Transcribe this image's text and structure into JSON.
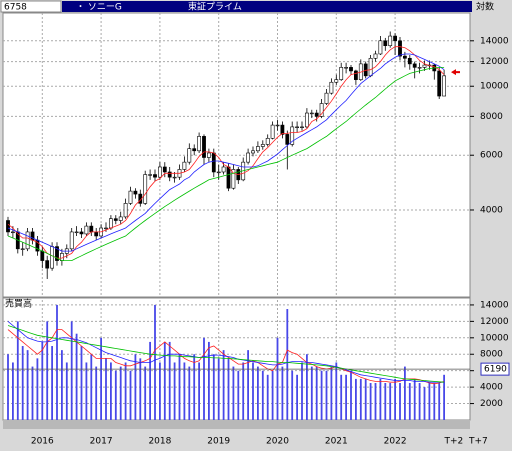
{
  "header": {
    "code": "6758",
    "name": "・ ソニーG",
    "market": "東証プライム",
    "scale_label": "対数"
  },
  "chart_data": [
    {
      "type": "candlestick",
      "yscale": "log",
      "grid": true,
      "categories": [
        null,
        null,
        null,
        null,
        null,
        null,
        null,
        "2016",
        null,
        null,
        null,
        null,
        null,
        null,
        null,
        null,
        null,
        null,
        null,
        "2017",
        null,
        null,
        null,
        null,
        null,
        null,
        null,
        null,
        null,
        null,
        null,
        "2018",
        null,
        null,
        null,
        null,
        null,
        null,
        null,
        null,
        null,
        null,
        null,
        "2019",
        null,
        null,
        null,
        null,
        null,
        null,
        null,
        null,
        null,
        null,
        null,
        "2020",
        null,
        null,
        null,
        null,
        null,
        null,
        null,
        null,
        null,
        null,
        null,
        "2021",
        null,
        null,
        null,
        null,
        null,
        null,
        null,
        null,
        null,
        null,
        null,
        "2022",
        null,
        null,
        null,
        null,
        null,
        null,
        null,
        null,
        null,
        null
      ],
      "future_ticks": [
        {
          "value": 2,
          "label": "T+2"
        },
        {
          "value": 7,
          "label": "T+7"
        }
      ],
      "open": [
        3700,
        3400,
        3400,
        3000,
        3000,
        3400,
        3200,
        2950,
        2750,
        2600,
        3050,
        2750,
        2900,
        3000,
        3400,
        3400,
        3350,
        3550,
        3400,
        3300,
        3500,
        3500,
        3750,
        3700,
        3800,
        4200,
        4600,
        4500,
        4200,
        5200,
        5200,
        5100,
        5500,
        5300,
        5100,
        5100,
        5400,
        5700,
        6300,
        6200,
        6900,
        5900,
        6100,
        5300,
        5300,
        5500,
        4700,
        5400,
        5000,
        5700,
        6100,
        6200,
        6400,
        6500,
        6800,
        7500,
        7500,
        7000,
        6500,
        7400,
        7400,
        7400,
        8200,
        8200,
        8000,
        8800,
        9500,
        10300,
        10500,
        11500,
        11500,
        11200,
        10500,
        11800,
        10800,
        12300,
        12700,
        14000,
        13500,
        14500,
        14000,
        12500,
        12300,
        11800,
        11500,
        11500,
        11700,
        11700,
        11200,
        9300
      ],
      "high": [
        3800,
        3550,
        3500,
        3150,
        3500,
        3500,
        3300,
        3050,
        2850,
        3150,
        3150,
        3000,
        3100,
        3500,
        3550,
        3500,
        3650,
        3650,
        3500,
        3600,
        3650,
        3850,
        3850,
        3950,
        4350,
        4750,
        4700,
        4650,
        5350,
        5400,
        5400,
        5700,
        5700,
        5500,
        5300,
        5600,
        5950,
        6550,
        6500,
        7100,
        7000,
        6300,
        6300,
        5600,
        5700,
        5650,
        5600,
        5500,
        5900,
        6300,
        6400,
        6650,
        6700,
        7000,
        7700,
        7800,
        7700,
        7200,
        7700,
        7700,
        7700,
        8500,
        8400,
        8400,
        9100,
        9800,
        10600,
        10900,
        11900,
        11900,
        11700,
        11300,
        12200,
        12000,
        12600,
        13000,
        14500,
        14300,
        15000,
        14800,
        14400,
        12900,
        12600,
        12000,
        11900,
        12100,
        12100,
        11800,
        11500,
        11300
      ],
      "low": [
        3300,
        3250,
        2900,
        2850,
        2950,
        3100,
        2850,
        2600,
        2400,
        2550,
        2650,
        2650,
        2800,
        2950,
        3300,
        3250,
        3300,
        3300,
        3200,
        3250,
        3400,
        3450,
        3600,
        3600,
        3750,
        4150,
        4350,
        4100,
        4150,
        5000,
        4950,
        5000,
        5100,
        4950,
        4900,
        5000,
        5300,
        5600,
        6000,
        6100,
        5600,
        5700,
        5100,
        5000,
        5200,
        4600,
        4650,
        4850,
        4950,
        5600,
        5950,
        6100,
        6250,
        6400,
        6750,
        7200,
        6800,
        5400,
        6400,
        7100,
        7200,
        7300,
        7900,
        7700,
        7900,
        8700,
        9400,
        10100,
        10400,
        11000,
        10900,
        10100,
        10400,
        10600,
        10700,
        12000,
        12600,
        13000,
        13300,
        12600,
        12100,
        11500,
        11300,
        10600,
        11000,
        11200,
        11300,
        10500,
        9100,
        9300
      ],
      "close": [
        3400,
        3400,
        3000,
        3000,
        3400,
        3200,
        2950,
        2750,
        2600,
        3050,
        2750,
        2900,
        3000,
        3400,
        3400,
        3350,
        3550,
        3400,
        3300,
        3500,
        3500,
        3750,
        3700,
        3800,
        4200,
        4600,
        4500,
        4200,
        5200,
        5200,
        5100,
        5500,
        5300,
        5100,
        5100,
        5400,
        5700,
        6300,
        6200,
        6900,
        5900,
        6100,
        5300,
        5300,
        5500,
        4700,
        5400,
        5000,
        5700,
        6100,
        6200,
        6400,
        6500,
        6800,
        7500,
        7500,
        7000,
        6500,
        7400,
        7400,
        7400,
        8200,
        8200,
        8000,
        8800,
        9500,
        10300,
        10500,
        11500,
        11500,
        11200,
        10500,
        11800,
        10800,
        12300,
        12700,
        14000,
        13500,
        14500,
        14000,
        12500,
        12300,
        11800,
        11500,
        11500,
        11700,
        11700,
        11200,
        9300,
        10800
      ],
      "series": [
        {
          "color": "#ff2020",
          "values": [
            3600,
            3500,
            3350,
            3250,
            3250,
            3200,
            3150,
            3050,
            2900,
            2850,
            2800,
            2800,
            2850,
            2900,
            3050,
            3150,
            3300,
            3400,
            3400,
            3400,
            3450,
            3500,
            3550,
            3600,
            3700,
            3900,
            4150,
            4300,
            4500,
            4750,
            4950,
            5050,
            5250,
            5250,
            5250,
            5250,
            5300,
            5400,
            5650,
            5950,
            6150,
            6150,
            6100,
            5900,
            5600,
            5500,
            5250,
            5200,
            5250,
            5350,
            5550,
            5850,
            6150,
            6350,
            6600,
            6850,
            7050,
            7050,
            7100,
            7100,
            7150,
            7300,
            7700,
            7850,
            8150,
            8550,
            8950,
            9450,
            10000,
            10500,
            10900,
            11000,
            11100,
            11250,
            11300,
            11550,
            12000,
            12600,
            13100,
            13400,
            13400,
            13300,
            13000,
            12600,
            12100,
            11800,
            11650,
            11550,
            11300,
            10900
          ]
        },
        {
          "color": "#2020ff",
          "values": [
            3500,
            3450,
            3400,
            3350,
            3300,
            3250,
            3200,
            3150,
            3100,
            3050,
            3000,
            2950,
            2950,
            2950,
            3000,
            3050,
            3100,
            3150,
            3200,
            3250,
            3300,
            3350,
            3400,
            3450,
            3500,
            3600,
            3700,
            3800,
            3900,
            4050,
            4200,
            4350,
            4500,
            4650,
            4750,
            4850,
            5000,
            5100,
            5300,
            5450,
            5600,
            5700,
            5750,
            5750,
            5700,
            5650,
            5600,
            5550,
            5500,
            5500,
            5500,
            5550,
            5650,
            5750,
            5900,
            6050,
            6250,
            6450,
            6650,
            6800,
            6950,
            7100,
            7250,
            7400,
            7600,
            7800,
            8100,
            8400,
            8700,
            9000,
            9400,
            9800,
            10200,
            10500,
            10800,
            11100,
            11400,
            11800,
            12100,
            12400,
            12600,
            12700,
            12700,
            12600,
            12400,
            12200,
            12000,
            11800,
            11600,
            11300
          ]
        },
        {
          "color": "#00c000",
          "values": [
            3300,
            3250,
            3200,
            3150,
            3100,
            3050,
            3000,
            2950,
            2900,
            2850,
            2800,
            2750,
            2750,
            2750,
            2800,
            2850,
            2900,
            2950,
            3000,
            3050,
            3100,
            3150,
            3200,
            3250,
            3300,
            3400,
            3500,
            3600,
            3700,
            3800,
            3900,
            4000,
            4100,
            4200,
            4300,
            4400,
            4500,
            4600,
            4700,
            4800,
            4900,
            5000,
            5050,
            5100,
            5150,
            5200,
            5250,
            5300,
            5350,
            5400,
            5450,
            5500,
            5550,
            5600,
            5650,
            5700,
            5800,
            5900,
            6000,
            6100,
            6200,
            6300,
            6450,
            6600,
            6750,
            6900,
            7100,
            7300,
            7500,
            7700,
            7950,
            8200,
            8450,
            8700,
            8950,
            9200,
            9500,
            9800,
            10100,
            10400,
            10600,
            10800,
            11000,
            11100,
            11200,
            11300,
            11400,
            11450,
            11500,
            11500
          ]
        }
      ],
      "price_marker": {
        "value": 11100,
        "color": "#e00000"
      },
      "ylim": [
        2100,
        17200
      ],
      "yticks": [
        4000,
        6000,
        8000,
        10000,
        12000,
        14000
      ]
    },
    {
      "type": "bar",
      "title": "売買高",
      "color": "#4848e8",
      "grid": true,
      "values": [
        8000,
        7000,
        12000,
        9000,
        8500,
        6500,
        7500,
        9500,
        12000,
        9000,
        14000,
        8500,
        7000,
        12000,
        10500,
        9000,
        7000,
        8000,
        6500,
        10000,
        7500,
        7000,
        6000,
        6500,
        7000,
        6000,
        8000,
        7500,
        6500,
        9500,
        14000,
        7000,
        9500,
        9500,
        7000,
        8000,
        7000,
        6500,
        8000,
        7000,
        10000,
        9500,
        8000,
        7500,
        8500,
        7500,
        6500,
        6000,
        7000,
        8500,
        7000,
        6500,
        6000,
        5500,
        6000,
        10000,
        6500,
        13500,
        6000,
        5500,
        7000,
        8000,
        6500,
        6500,
        6000,
        6000,
        6500,
        7000,
        5500,
        5500,
        6000,
        5000,
        5000,
        5000,
        4500,
        4500,
        5000,
        4500,
        4500,
        5000,
        4500,
        6500,
        4500,
        5000,
        4500,
        4000,
        4500,
        4500,
        4500,
        5500
      ],
      "series": [
        {
          "color": "#ff2020",
          "values": [
            11000,
            10500,
            10000,
            9500,
            9000,
            8500,
            8000,
            8500,
            9500,
            10000,
            11000,
            11000,
            10500,
            10000,
            9500,
            9000,
            8500,
            8000,
            7500,
            7500,
            7500,
            7500,
            7000,
            6800,
            6600,
            6600,
            6800,
            7000,
            7200,
            7500,
            8500,
            9000,
            9500,
            9000,
            8500,
            8000,
            7500,
            7200,
            7000,
            7200,
            8000,
            8800,
            9000,
            8500,
            8000,
            7600,
            7200,
            6800,
            6800,
            7000,
            7200,
            7000,
            6600,
            6200,
            6000,
            6800,
            7000,
            8500,
            8200,
            8000,
            7500,
            7000,
            6800,
            6500,
            6300,
            6200,
            6300,
            6500,
            6200,
            6000,
            5800,
            5500,
            5200,
            5000,
            4800,
            4700,
            4700,
            4700,
            4600,
            4600,
            4700,
            5000,
            5000,
            5000,
            4900,
            4700,
            4500,
            4400,
            4500,
            4700
          ]
        },
        {
          "color": "#2020ff",
          "values": [
            12000,
            11500,
            11000,
            10500,
            10000,
            9800,
            9600,
            9500,
            9500,
            9600,
            9800,
            10000,
            10000,
            9900,
            9800,
            9600,
            9400,
            9100,
            8800,
            8500,
            8200,
            8000,
            7800,
            7600,
            7400,
            7200,
            7100,
            7000,
            7000,
            7000,
            7300,
            7500,
            7800,
            8000,
            8000,
            8000,
            7900,
            7800,
            7700,
            7600,
            7700,
            7800,
            7900,
            7900,
            7800,
            7700,
            7600,
            7400,
            7300,
            7200,
            7100,
            7000,
            6900,
            6800,
            6700,
            6700,
            6800,
            7000,
            7100,
            7100,
            7100,
            7000,
            7000,
            6900,
            6800,
            6700,
            6600,
            6500,
            6300,
            6100,
            5900,
            5700,
            5500,
            5400,
            5300,
            5200,
            5100,
            5000,
            4900,
            4800,
            4800,
            4800,
            4800,
            4700,
            4700,
            4700,
            4600,
            4600,
            4600,
            4600
          ]
        },
        {
          "color": "#00c000",
          "values": [
            11500,
            11300,
            11100,
            10900,
            10700,
            10500,
            10300,
            10200,
            10100,
            10000,
            9900,
            9800,
            9700,
            9600,
            9500,
            9400,
            9300,
            9200,
            9100,
            9000,
            8900,
            8800,
            8700,
            8600,
            8500,
            8400,
            8300,
            8200,
            8100,
            8000,
            7950,
            7900,
            7850,
            7800,
            7800,
            7750,
            7700,
            7700,
            7650,
            7600,
            7600,
            7600,
            7550,
            7550,
            7500,
            7500,
            7450,
            7400,
            7350,
            7300,
            7250,
            7200,
            7150,
            7100,
            7100,
            7050,
            7000,
            7000,
            6950,
            6900,
            6850,
            6800,
            6750,
            6700,
            6650,
            6600,
            6500,
            6400,
            6300,
            6200,
            6100,
            6000,
            5900,
            5800,
            5700,
            5600,
            5500,
            5400,
            5300,
            5200,
            5100,
            5000,
            4950,
            4900,
            4850,
            4800,
            4750,
            4700,
            4650,
            4600
          ]
        }
      ],
      "current_value": 6190,
      "ylim": [
        0,
        14600
      ],
      "yticks": [
        2000,
        4000,
        6000,
        8000,
        10000,
        12000,
        14000
      ]
    }
  ]
}
